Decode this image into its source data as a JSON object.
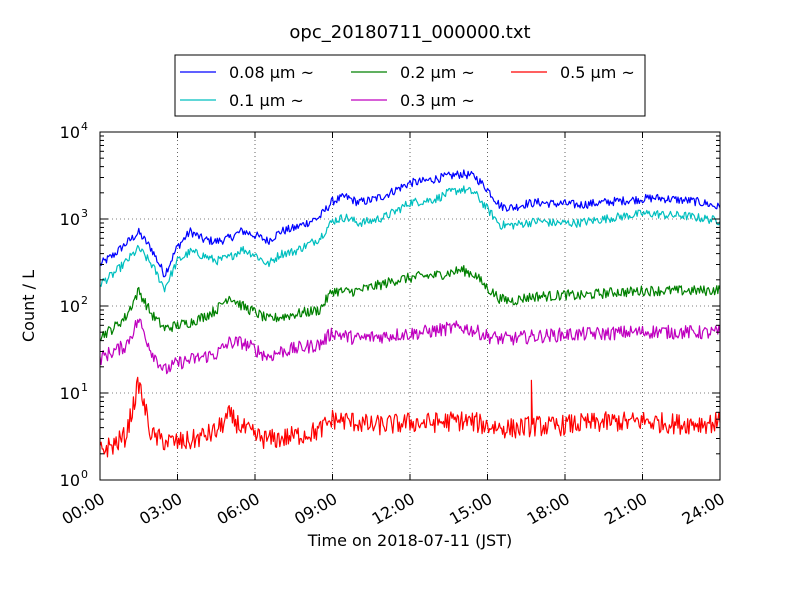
{
  "chart_data": {
    "type": "line",
    "title": "opc_20180711_000000.txt",
    "xlabel": "Time on 2018-07-11 (JST)",
    "ylabel": "Count / L",
    "yscale": "log",
    "ylim": [
      1,
      10000
    ],
    "xlim": [
      0,
      24
    ],
    "grid": true,
    "legend_position": "top-center",
    "x_tick_labels": [
      "00:00",
      "03:00",
      "06:00",
      "09:00",
      "12:00",
      "15:00",
      "18:00",
      "21:00",
      "24:00"
    ],
    "y_tick_labels": [
      {
        "base": "10",
        "exp": "0"
      },
      {
        "base": "10",
        "exp": "1"
      },
      {
        "base": "10",
        "exp": "2"
      },
      {
        "base": "10",
        "exp": "3"
      },
      {
        "base": "10",
        "exp": "4"
      }
    ],
    "x_hours": [
      0,
      0.5,
      1,
      1.5,
      2,
      2.5,
      3,
      3.5,
      4,
      4.5,
      5,
      5.5,
      6,
      6.5,
      7,
      7.5,
      8,
      8.5,
      9,
      9.5,
      10,
      10.5,
      11,
      11.5,
      12,
      12.5,
      13,
      13.5,
      14,
      14.5,
      15,
      15.5,
      16,
      16.5,
      17,
      17.5,
      18,
      18.5,
      19,
      19.5,
      20,
      20.5,
      21,
      21.5,
      22,
      22.5,
      23,
      23.5,
      24
    ],
    "series": [
      {
        "name": "0.08 μm ~",
        "color": "#0000ff",
        "values": [
          300,
          380,
          520,
          700,
          450,
          230,
          480,
          720,
          580,
          550,
          600,
          730,
          650,
          560,
          720,
          780,
          900,
          1050,
          1600,
          1800,
          1550,
          1650,
          1850,
          2200,
          2600,
          2700,
          2900,
          3100,
          3300,
          3100,
          2200,
          1400,
          1350,
          1500,
          1550,
          1500,
          1500,
          1450,
          1500,
          1550,
          1600,
          1650,
          1700,
          1750,
          1700,
          1650,
          1600,
          1500,
          1350
        ]
      },
      {
        "name": "0.1 μm ~",
        "color": "#00bfbf",
        "values": [
          180,
          230,
          320,
          460,
          300,
          160,
          330,
          420,
          380,
          330,
          360,
          450,
          390,
          300,
          400,
          420,
          500,
          600,
          950,
          1050,
          900,
          950,
          1050,
          1250,
          1550,
          1600,
          1700,
          2000,
          2200,
          2000,
          1300,
          850,
          850,
          900,
          950,
          900,
          900,
          900,
          950,
          1000,
          1050,
          1100,
          1150,
          1150,
          1100,
          1100,
          1050,
          1000,
          950
        ]
      },
      {
        "name": "0.2 μm ~",
        "color": "#008000",
        "values": [
          45,
          55,
          75,
          150,
          80,
          55,
          60,
          65,
          75,
          90,
          130,
          100,
          85,
          70,
          75,
          80,
          85,
          90,
          150,
          145,
          150,
          165,
          180,
          200,
          210,
          220,
          225,
          240,
          260,
          230,
          160,
          120,
          115,
          125,
          130,
          130,
          135,
          130,
          135,
          140,
          145,
          145,
          150,
          150,
          150,
          150,
          150,
          150,
          155
        ]
      },
      {
        "name": "0.3 μm ~",
        "color": "#bf00bf",
        "values": [
          25,
          30,
          35,
          70,
          30,
          18,
          22,
          24,
          26,
          28,
          38,
          38,
          32,
          26,
          30,
          32,
          34,
          36,
          50,
          45,
          42,
          44,
          45,
          47,
          48,
          50,
          52,
          55,
          57,
          52,
          45,
          42,
          42,
          44,
          45,
          46,
          47,
          47,
          48,
          48,
          49,
          50,
          50,
          51,
          50,
          50,
          50,
          49,
          50
        ]
      },
      {
        "name": "0.5 μm ~",
        "color": "#ff0000",
        "values": [
          2.2,
          2.5,
          3.2,
          13,
          3.2,
          2.8,
          2.7,
          2.8,
          3.2,
          3.6,
          5.5,
          4.0,
          3.2,
          2.9,
          3.0,
          3.2,
          3.4,
          3.7,
          5.0,
          4.8,
          4.6,
          4.2,
          4.3,
          4.4,
          4.6,
          4.5,
          4.6,
          4.7,
          4.8,
          4.6,
          4.2,
          4.0,
          3.9,
          4.1,
          4.2,
          4.1,
          4.3,
          4.4,
          4.5,
          4.6,
          4.7,
          4.6,
          4.8,
          4.6,
          4.5,
          4.4,
          4.5,
          4.5,
          4.6
        ]
      }
    ],
    "spikes": [
      {
        "series": "0.5 μm ~",
        "x": 16.7,
        "value": 14
      }
    ]
  }
}
